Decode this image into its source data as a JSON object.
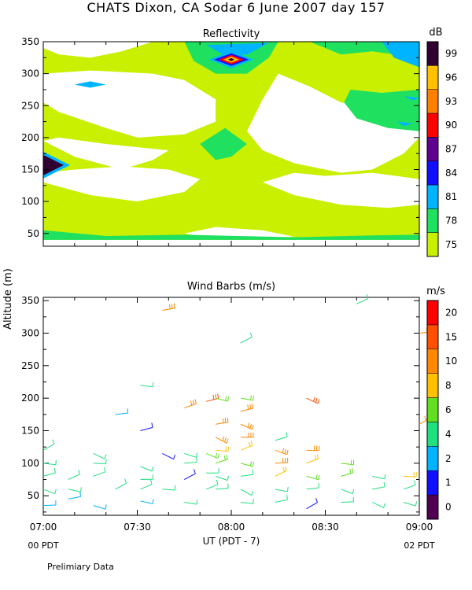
{
  "title": "CHATS Dixon, CA  Sodar   6 June 2007  day 157",
  "footnote": "Prelimiary Data",
  "colors": {
    "refl_bands": [
      "#c8f000",
      "#20e060",
      "#00b4ff",
      "#1010ff",
      "#600090",
      "#ff0000",
      "#ff8000",
      "#ffc000",
      "#300030"
    ],
    "wind_bands": [
      "#500050",
      "#1010ff",
      "#00b4ff",
      "#20e080",
      "#60e020",
      "#ffc000",
      "#ff8800",
      "#ff5000",
      "#ff0000"
    ]
  },
  "chart_data": [
    {
      "type": "heatmap",
      "title": "Reflectivity",
      "unit_label": "dB",
      "xlabel": "UT  (PDT - 7)",
      "ylabel": "Altitude  (m)",
      "xlim": [
        "07:00",
        "09:00"
      ],
      "ylim": [
        30,
        350
      ],
      "x_ticks": [
        "07:00",
        "07:30",
        "08:00",
        "08:30",
        "09:00"
      ],
      "y_ticks": [
        50,
        100,
        150,
        200,
        250,
        300,
        350
      ],
      "colorbar_ticks": [
        75,
        78,
        81,
        84,
        87,
        90,
        93,
        96,
        99
      ],
      "grid": false,
      "regions": [
        {
          "level": 75,
          "note": "background"
        },
        {
          "level": 78,
          "t": [
            [
              "07:00",
              50
            ],
            [
              "07:05",
              40
            ],
            [
              "09:00",
              40
            ],
            [
              "09:00",
              55
            ],
            [
              "08:40",
              58
            ]
          ]
        },
        {
          "level": 78,
          "t": [
            [
              "07:45",
              350
            ],
            [
              "08:15",
              350
            ],
            [
              "08:10",
              310
            ],
            [
              "08:00",
              295
            ],
            [
              "07:50",
              305
            ]
          ]
        },
        {
          "level": 81,
          "t": [
            [
              "07:50",
              340
            ],
            [
              "08:10",
              340
            ],
            [
              "08:05",
              330
            ],
            [
              "07:58",
              325
            ]
          ]
        },
        {
          "level": 99,
          "t": [
            [
              "07:00",
              145
            ],
            [
              "07:08",
              160
            ],
            [
              "07:00",
              175
            ]
          ]
        }
      ]
    },
    {
      "type": "scatter",
      "title": "Wind Barbs (m/s)",
      "unit_label": "m/s",
      "xlabel": "UT  (PDT - 7)",
      "ylabel": "Altitude  (m)",
      "xlim": [
        "07:00",
        "09:00"
      ],
      "ylim": [
        20,
        355
      ],
      "x_ticks": [
        "07:00",
        "07:30",
        "08:00",
        "08:30",
        "09:00"
      ],
      "y_ticks": [
        50,
        100,
        150,
        200,
        250,
        300,
        350
      ],
      "colorbar_ticks": [
        0,
        1,
        2,
        4,
        6,
        8,
        10,
        15,
        20
      ],
      "x_sublabels": {
        "left": "00 PDT",
        "right": "02 PDT"
      },
      "grid": false,
      "barbs": [
        {
          "t": "07:00",
          "alt": 120,
          "speed": 4
        },
        {
          "t": "07:00",
          "alt": 100,
          "speed": 5
        },
        {
          "t": "07:00",
          "alt": 80,
          "speed": 5
        },
        {
          "t": "07:00",
          "alt": 60,
          "speed": 4
        },
        {
          "t": "07:00",
          "alt": 35,
          "speed": 3
        },
        {
          "t": "07:08",
          "alt": 75,
          "speed": 4
        },
        {
          "t": "07:08",
          "alt": 60,
          "speed": 4
        },
        {
          "t": "07:08",
          "alt": 45,
          "speed": 3
        },
        {
          "t": "07:16",
          "alt": 115,
          "speed": 5
        },
        {
          "t": "07:16",
          "alt": 100,
          "speed": 5
        },
        {
          "t": "07:16",
          "alt": 80,
          "speed": 5
        },
        {
          "t": "07:16",
          "alt": 35,
          "speed": 3
        },
        {
          "t": "07:23",
          "alt": 175,
          "speed": 3
        },
        {
          "t": "07:23",
          "alt": 60,
          "speed": 4
        },
        {
          "t": "07:31",
          "alt": 220,
          "speed": 5
        },
        {
          "t": "07:31",
          "alt": 150,
          "speed": 1
        },
        {
          "t": "07:31",
          "alt": 95,
          "speed": 5
        },
        {
          "t": "07:31",
          "alt": 75,
          "speed": 5
        },
        {
          "t": "07:31",
          "alt": 60,
          "speed": 5
        },
        {
          "t": "07:31",
          "alt": 42,
          "speed": 3
        },
        {
          "t": "07:38",
          "alt": 335,
          "speed": 10
        },
        {
          "t": "07:38",
          "alt": 115,
          "speed": 1
        },
        {
          "t": "07:38",
          "alt": 60,
          "speed": 5
        },
        {
          "t": "07:45",
          "alt": 185,
          "speed": 10
        },
        {
          "t": "07:45",
          "alt": 115,
          "speed": 5
        },
        {
          "t": "07:45",
          "alt": 100,
          "speed": 5
        },
        {
          "t": "07:45",
          "alt": 75,
          "speed": 1
        },
        {
          "t": "07:45",
          "alt": 40,
          "speed": 4
        },
        {
          "t": "07:52",
          "alt": 195,
          "speed": 15
        },
        {
          "t": "07:52",
          "alt": 115,
          "speed": 6
        },
        {
          "t": "07:52",
          "alt": 85,
          "speed": 5
        },
        {
          "t": "07:52",
          "alt": 60,
          "speed": 5
        },
        {
          "t": "07:55",
          "alt": 200,
          "speed": 6
        },
        {
          "t": "07:55",
          "alt": 160,
          "speed": 10
        },
        {
          "t": "07:55",
          "alt": 140,
          "speed": 10
        },
        {
          "t": "07:55",
          "alt": 120,
          "speed": 8
        },
        {
          "t": "07:55",
          "alt": 100,
          "speed": 6
        },
        {
          "t": "07:55",
          "alt": 80,
          "speed": 5
        },
        {
          "t": "07:55",
          "alt": 60,
          "speed": 5
        },
        {
          "t": "08:03",
          "alt": 285,
          "speed": 4
        },
        {
          "t": "08:03",
          "alt": 200,
          "speed": 6
        },
        {
          "t": "08:03",
          "alt": 180,
          "speed": 10
        },
        {
          "t": "08:03",
          "alt": 160,
          "speed": 10
        },
        {
          "t": "08:03",
          "alt": 140,
          "speed": 10
        },
        {
          "t": "08:03",
          "alt": 120,
          "speed": 8
        },
        {
          "t": "08:03",
          "alt": 100,
          "speed": 6
        },
        {
          "t": "08:03",
          "alt": 80,
          "speed": 5
        },
        {
          "t": "08:03",
          "alt": 60,
          "speed": 5
        },
        {
          "t": "08:03",
          "alt": 40,
          "speed": 5
        },
        {
          "t": "08:14",
          "alt": 135,
          "speed": 5
        },
        {
          "t": "08:14",
          "alt": 120,
          "speed": 10
        },
        {
          "t": "08:14",
          "alt": 100,
          "speed": 10
        },
        {
          "t": "08:14",
          "alt": 80,
          "speed": 8
        },
        {
          "t": "08:14",
          "alt": 60,
          "speed": 5
        },
        {
          "t": "08:14",
          "alt": 40,
          "speed": 4
        },
        {
          "t": "08:24",
          "alt": 200,
          "speed": 15
        },
        {
          "t": "08:24",
          "alt": 120,
          "speed": 10
        },
        {
          "t": "08:24",
          "alt": 100,
          "speed": 8
        },
        {
          "t": "08:24",
          "alt": 80,
          "speed": 6
        },
        {
          "t": "08:24",
          "alt": 60,
          "speed": 5
        },
        {
          "t": "08:24",
          "alt": 30,
          "speed": 1
        },
        {
          "t": "08:35",
          "alt": 100,
          "speed": 6
        },
        {
          "t": "08:35",
          "alt": 80,
          "speed": 6
        },
        {
          "t": "08:35",
          "alt": 60,
          "speed": 5
        },
        {
          "t": "08:35",
          "alt": 40,
          "speed": 4
        },
        {
          "t": "08:40",
          "alt": 345,
          "speed": 4
        },
        {
          "t": "08:45",
          "alt": 80,
          "speed": 5
        },
        {
          "t": "08:45",
          "alt": 60,
          "speed": 4
        },
        {
          "t": "08:45",
          "alt": 40,
          "speed": 4
        },
        {
          "t": "08:55",
          "alt": 80,
          "speed": 8
        },
        {
          "t": "08:55",
          "alt": 60,
          "speed": 5
        },
        {
          "t": "08:55",
          "alt": 40,
          "speed": 4
        },
        {
          "t": "09:00",
          "alt": 300,
          "speed": 10
        },
        {
          "t": "09:00",
          "alt": 160,
          "speed": 10
        }
      ]
    }
  ]
}
